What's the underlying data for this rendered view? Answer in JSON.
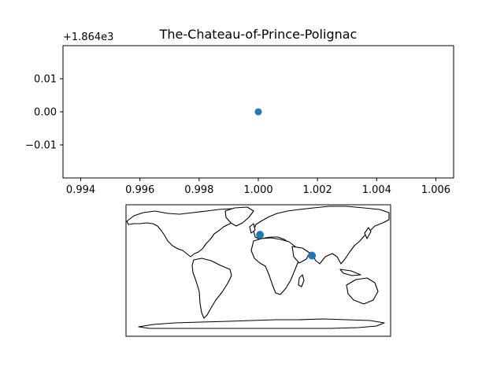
{
  "chart_data": [
    {
      "type": "scatter",
      "title": "The-Chateau-of-Prince-Polignac",
      "y_offset_label": "+1.864e3",
      "xlim": [
        0.9934,
        1.0066
      ],
      "ylim": [
        -0.02,
        0.02
      ],
      "x_ticks": [
        0.994,
        0.996,
        0.998,
        1.0,
        1.002,
        1.004,
        1.006
      ],
      "x_tick_labels": [
        "0.994",
        "0.996",
        "0.998",
        "1.000",
        "1.002",
        "1.004",
        "1.006"
      ],
      "y_ticks": [
        0.01,
        0.0,
        -0.01
      ],
      "y_tick_labels": [
        "0.01",
        "0.00",
        "−0.01"
      ],
      "points": [
        {
          "x": 1.0,
          "y": 0.0
        }
      ],
      "marker_color": "#1f77b4"
    },
    {
      "type": "map",
      "projection": "PlateCarree",
      "lon_range": [
        -180,
        180
      ],
      "lat_range": [
        -90,
        90
      ],
      "points": [
        {
          "lon": 2.3,
          "lat": 48.9
        },
        {
          "lon": 73.0,
          "lat": 20.5
        }
      ],
      "marker_color": "#1f77b4"
    }
  ]
}
